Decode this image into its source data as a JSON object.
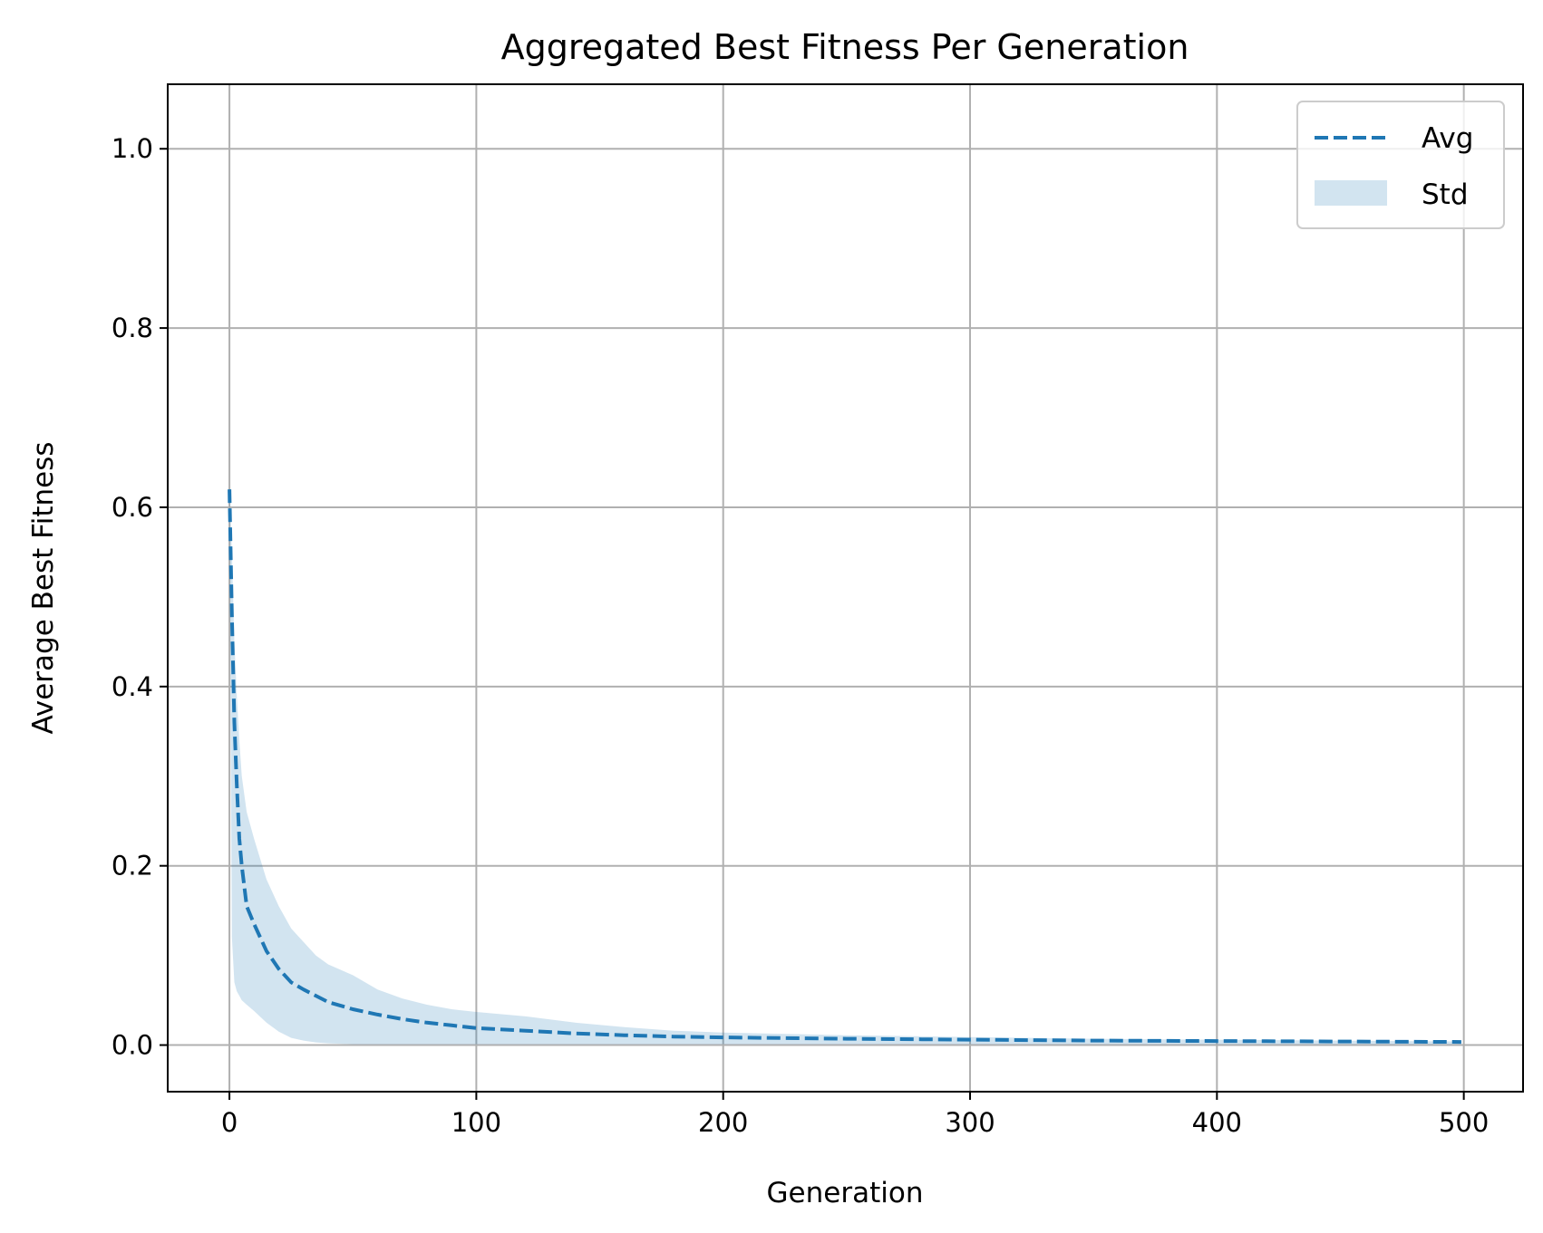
{
  "chart_data": {
    "type": "line",
    "title": "Aggregated Best Fitness Per Generation",
    "xlabel": "Generation",
    "ylabel": "Average Best Fitness",
    "xlim": [
      -25,
      524
    ],
    "ylim": [
      -0.052,
      1.072
    ],
    "xticks": [
      0,
      100,
      200,
      300,
      400,
      500
    ],
    "xtick_labels": [
      "0",
      "100",
      "200",
      "300",
      "400",
      "500"
    ],
    "yticks": [
      0.0,
      0.2,
      0.4,
      0.6,
      0.8,
      1.0
    ],
    "ytick_labels": [
      "0.0",
      "0.2",
      "0.4",
      "0.6",
      "0.8",
      "1.0"
    ],
    "grid": true,
    "legend": {
      "position": "top-right",
      "entries": [
        "Avg",
        "Std"
      ]
    },
    "colors": {
      "line": "#1f77b4",
      "band": "#1f77b4",
      "band_opacity": 0.2,
      "grid": "#b0b0b0"
    },
    "series": [
      {
        "name": "Avg",
        "style": "dashed",
        "x": [
          0,
          1,
          2,
          3,
          4,
          5,
          7,
          10,
          15,
          20,
          25,
          30,
          35,
          40,
          50,
          60,
          70,
          80,
          90,
          100,
          120,
          140,
          160,
          180,
          200,
          250,
          300,
          350,
          400,
          450,
          499
        ],
        "y": [
          0.62,
          0.48,
          0.36,
          0.29,
          0.23,
          0.2,
          0.155,
          0.135,
          0.105,
          0.085,
          0.07,
          0.062,
          0.055,
          0.048,
          0.04,
          0.034,
          0.029,
          0.025,
          0.022,
          0.019,
          0.016,
          0.013,
          0.011,
          0.0095,
          0.0085,
          0.007,
          0.006,
          0.005,
          0.0045,
          0.004,
          0.0035
        ]
      },
      {
        "name": "Std",
        "type": "band",
        "x": [
          0,
          1,
          2,
          3,
          4,
          5,
          7,
          10,
          15,
          20,
          25,
          30,
          35,
          40,
          50,
          60,
          70,
          80,
          90,
          100,
          120,
          140,
          160,
          180,
          200,
          250,
          300,
          350,
          400,
          450,
          499
        ],
        "upper": [
          0.62,
          0.55,
          0.45,
          0.39,
          0.34,
          0.3,
          0.26,
          0.23,
          0.185,
          0.155,
          0.13,
          0.115,
          0.1,
          0.09,
          0.078,
          0.062,
          0.052,
          0.045,
          0.04,
          0.037,
          0.032,
          0.025,
          0.02,
          0.016,
          0.014,
          0.011,
          0.009,
          0.007,
          0.006,
          0.005,
          0.004
        ],
        "lower": [
          0.6,
          0.12,
          0.07,
          0.06,
          0.055,
          0.05,
          0.045,
          0.038,
          0.025,
          0.015,
          0.008,
          0.005,
          0.003,
          0.002,
          0.001,
          0.001,
          0.001,
          0.001,
          0.001,
          0.001,
          0.001,
          0.001,
          0.001,
          0.001,
          0.001,
          0.001,
          0.001,
          0.001,
          0.001,
          0.001,
          0.001
        ]
      }
    ]
  }
}
